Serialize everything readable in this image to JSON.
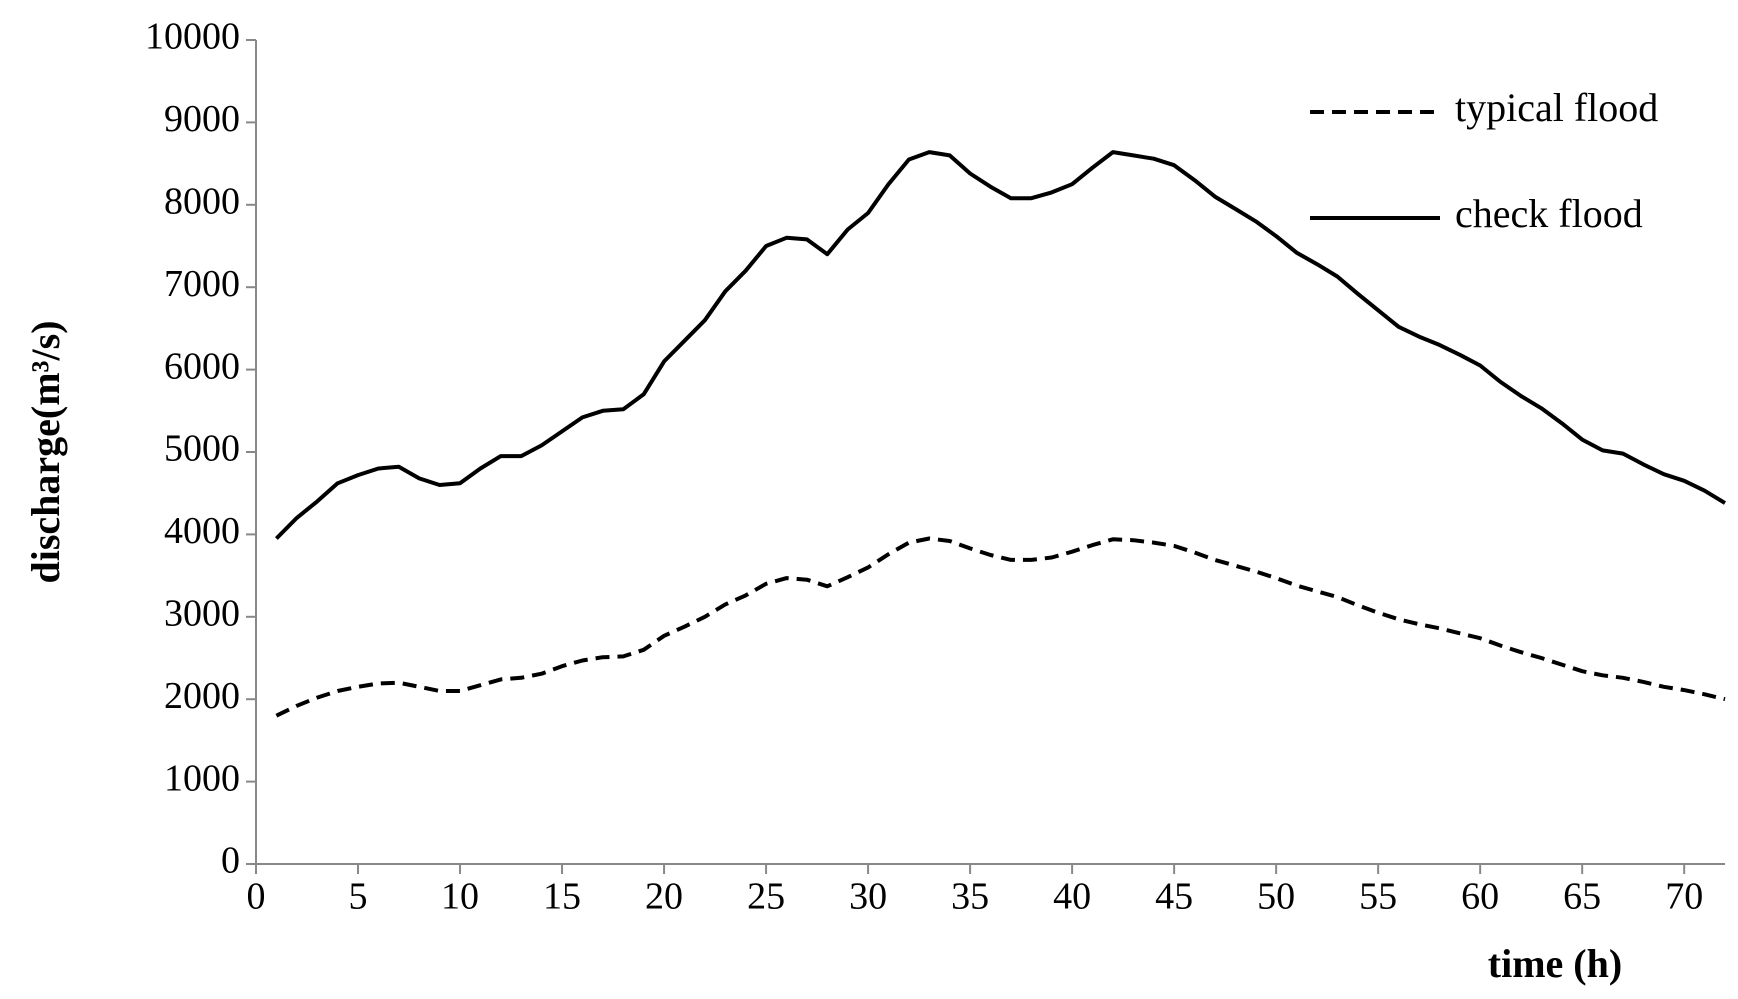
{
  "chart_data": {
    "type": "line",
    "x_label": "time (h)",
    "y_label": "discharge(m³/s)",
    "x": [
      1,
      2,
      3,
      4,
      5,
      6,
      7,
      8,
      9,
      10,
      11,
      12,
      13,
      14,
      15,
      16,
      17,
      18,
      19,
      20,
      21,
      22,
      23,
      24,
      25,
      26,
      27,
      28,
      29,
      30,
      31,
      32,
      33,
      34,
      35,
      36,
      37,
      38,
      39,
      40,
      41,
      42,
      43,
      44,
      45,
      46,
      47,
      48,
      49,
      50,
      51,
      52,
      53,
      54,
      55,
      56,
      57,
      58,
      59,
      60,
      61,
      62,
      63,
      64,
      65,
      66,
      67,
      68,
      69,
      70,
      71,
      72
    ],
    "series": [
      {
        "name": "typical flood",
        "color": "#000000",
        "dash": true,
        "values": [
          1800,
          1920,
          2020,
          2100,
          2150,
          2190,
          2200,
          2150,
          2100,
          2100,
          2170,
          2240,
          2260,
          2310,
          2400,
          2470,
          2510,
          2520,
          2600,
          2770,
          2880,
          3000,
          3150,
          3260,
          3400,
          3470,
          3450,
          3370,
          3480,
          3600,
          3760,
          3900,
          3950,
          3920,
          3830,
          3750,
          3690,
          3690,
          3720,
          3790,
          3870,
          3940,
          3930,
          3900,
          3860,
          3780,
          3690,
          3620,
          3550,
          3470,
          3380,
          3310,
          3240,
          3140,
          3050,
          2970,
          2910,
          2860,
          2800,
          2740,
          2650,
          2570,
          2500,
          2420,
          2340,
          2290,
          2260,
          2210,
          2150,
          2110,
          2060,
          2000
        ]
      },
      {
        "name": "check flood",
        "color": "#000000",
        "dash": false,
        "values": [
          3950,
          4200,
          4400,
          4620,
          4720,
          4800,
          4820,
          4680,
          4600,
          4620,
          4800,
          4950,
          4950,
          5080,
          5250,
          5420,
          5500,
          5520,
          5700,
          6100,
          6350,
          6600,
          6950,
          7200,
          7500,
          7600,
          7580,
          7400,
          7700,
          7900,
          8250,
          8550,
          8640,
          8600,
          8380,
          8220,
          8080,
          8080,
          8150,
          8250,
          8450,
          8640,
          8600,
          8560,
          8480,
          8300,
          8100,
          7950,
          7800,
          7620,
          7420,
          7280,
          7130,
          6920,
          6720,
          6520,
          6400,
          6300,
          6180,
          6050,
          5850,
          5680,
          5530,
          5350,
          5150,
          5020,
          4980,
          4850,
          4730,
          4650,
          4530,
          4380
        ]
      }
    ],
    "xlim": [
      0,
      72
    ],
    "xticks": [
      0,
      5,
      10,
      15,
      20,
      25,
      30,
      35,
      40,
      45,
      50,
      55,
      60,
      65,
      70
    ],
    "ylim": [
      0,
      10000
    ],
    "yticks": [
      0,
      1000,
      2000,
      3000,
      4000,
      5000,
      6000,
      7000,
      8000,
      9000,
      10000
    ],
    "grid": false,
    "legend": "top-right"
  }
}
